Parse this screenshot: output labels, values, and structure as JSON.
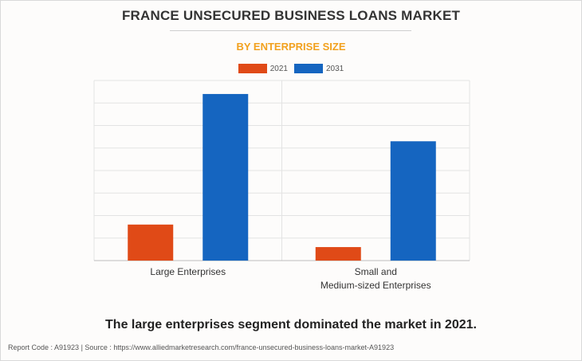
{
  "header": {
    "title": "FRANCE UNSECURED BUSINESS LOANS MARKET",
    "subtitle": "BY ENTERPRISE SIZE"
  },
  "legend": [
    {
      "label": "2021",
      "color": "#e04a17"
    },
    {
      "label": "2031",
      "color": "#1565c0"
    }
  ],
  "chart_data": {
    "type": "bar",
    "categories": [
      "Large Enterprises",
      "Small and Medium-sized Enterprises"
    ],
    "category_lines": [
      [
        "Large Enterprises"
      ],
      [
        "Small and",
        "Medium-sized Enterprises"
      ]
    ],
    "series": [
      {
        "name": "2021",
        "color": "#e04a17",
        "values": [
          16,
          6
        ]
      },
      {
        "name": "2031",
        "color": "#1565c0",
        "values": [
          74,
          53
        ]
      }
    ],
    "ylim": [
      0,
      80
    ],
    "grid": true,
    "legend_position": "top"
  },
  "caption": "The large enterprises segment dominated the market in 2021.",
  "footer": "Report Code : A91923  |  Source : https://www.alliedmarketresearch.com/france-unsecured-business-loans-market-A91923"
}
